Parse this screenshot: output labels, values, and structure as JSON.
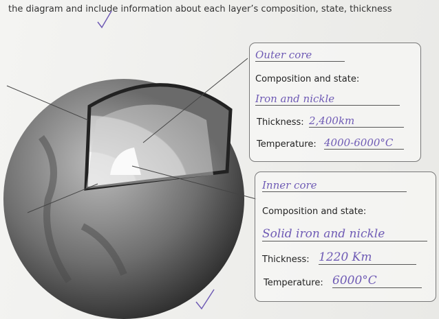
{
  "header": {
    "instruction": "the diagram and include information about each layer’s composition, state, thickness"
  },
  "boxes": [
    {
      "title": "Outer core",
      "composition_label": "Composition and state:",
      "composition": "Iron and nickle",
      "thickness_label": "Thickness:",
      "thickness": "2,400km",
      "temperature_label": "Temperature:",
      "temperature": "4000-6000°C"
    },
    {
      "title": "Inner core",
      "composition_label": "Composition and state:",
      "composition": "Solid iron and nickle",
      "thickness_label": "Thickness:",
      "thickness": "1220 Km",
      "temperature_label": "Temperature:",
      "temperature": "6000°C"
    }
  ]
}
